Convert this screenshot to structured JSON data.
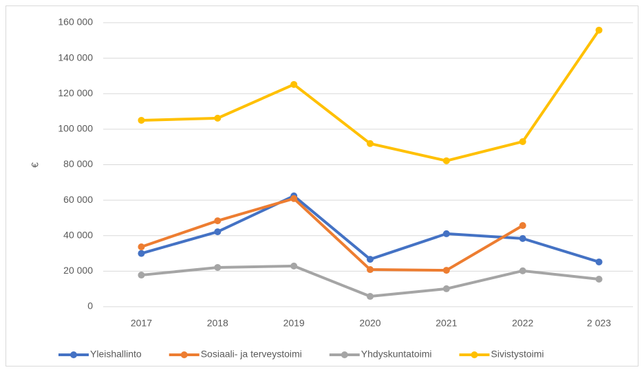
{
  "chart_data": {
    "type": "line",
    "y_label": "€",
    "categories": [
      "2017",
      "2018",
      "2019",
      "2020",
      "2021",
      "2022",
      "2 023"
    ],
    "ylim": [
      0,
      160000
    ],
    "yticks": [
      0,
      {
        "value": 20000,
        "label": "20 000"
      },
      {
        "value": 40000,
        "label": "40 000"
      },
      {
        "value": 60000,
        "label": "60 000"
      },
      {
        "value": 80000,
        "label": "80 000"
      },
      {
        "value": 100000,
        "label": "100 000"
      },
      {
        "value": 120000,
        "label": "120 000"
      },
      {
        "value": 140000,
        "label": "140 000"
      },
      {
        "value": 160000,
        "label": "160 000"
      }
    ],
    "grid": true,
    "legend": "bottom",
    "series": [
      {
        "name": "Yleishallinto",
        "color": "#4472c4",
        "values": [
          30000,
          42200,
          62400,
          26700,
          41100,
          38400,
          25200
        ]
      },
      {
        "name": "Sosiaali- ja terveystoimi",
        "color": "#ed7d31",
        "values": [
          33700,
          48400,
          60900,
          20900,
          20500,
          45700,
          null
        ]
      },
      {
        "name": "Yhdyskuntatoimi",
        "color": "#a5a5a5",
        "values": [
          17800,
          22100,
          22900,
          5800,
          10100,
          20200,
          15500
        ]
      },
      {
        "name": "Sivistystoimi",
        "color": "#ffc000",
        "values": [
          105000,
          106200,
          125200,
          91900,
          82200,
          93000,
          155800
        ]
      }
    ]
  }
}
